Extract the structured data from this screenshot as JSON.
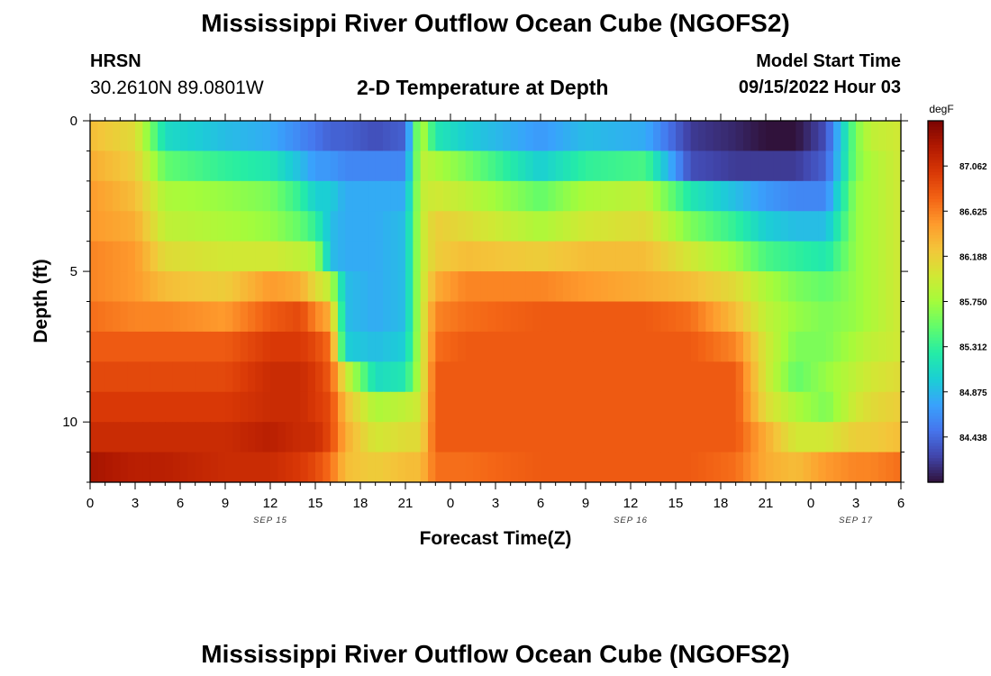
{
  "page": {
    "title_top": "Mississippi River Outflow Ocean Cube (NGOFS2)",
    "title_bottom": "Mississippi River Outflow Ocean Cube (NGOFS2)",
    "station_name": "HRSN",
    "station_coords": "30.2610N  89.0801W",
    "subtitle": "2-D Temperature at Depth",
    "model_start_label": "Model Start Time",
    "model_start_value": "09/15/2022 Hour 03"
  },
  "colors": {
    "colormap": [
      "#30123b",
      "#4145ab",
      "#4675ed",
      "#39a2fc",
      "#1bcfd4",
      "#24eca6",
      "#61fc6c",
      "#a4fc3b",
      "#d1e834",
      "#f3c63a",
      "#fe9b2d",
      "#f36315",
      "#d93806",
      "#b11901",
      "#7a0402"
    ]
  },
  "chart_data": {
    "type": "heatmap",
    "title": "2-D Temperature at Depth",
    "xlabel": "Forecast Time(Z)",
    "ylabel": "Depth (ft)",
    "x_ticks": [
      "0",
      "3",
      "6",
      "9",
      "12",
      "15",
      "18",
      "21",
      "0",
      "3",
      "6",
      "9",
      "12",
      "15",
      "18",
      "21",
      "0",
      "3",
      "6"
    ],
    "x_range_hours": [
      0,
      54
    ],
    "date_labels": [
      {
        "label": "SEP 15",
        "hour": 12
      },
      {
        "label": "SEP 16",
        "hour": 36
      },
      {
        "label": "SEP 17",
        "hour": 51
      }
    ],
    "y_ticks": [
      "0",
      "5",
      "10"
    ],
    "y_tick_values": [
      0,
      5,
      10
    ],
    "y_range_ft": [
      0,
      12
    ],
    "colorbar": {
      "unit": "degF",
      "labels": [
        "87.062",
        "86.625",
        "86.188",
        "85.750",
        "85.312",
        "84.875",
        "84.438"
      ],
      "label_values": [
        87.062,
        86.625,
        86.188,
        85.75,
        85.312,
        84.875,
        84.438
      ],
      "range": [
        84.0,
        87.5
      ]
    },
    "depths_ft": [
      0.5,
      1.5,
      2.5,
      3.5,
      4.5,
      5.5,
      6.5,
      7.5,
      8.5,
      9.5,
      10.5,
      11.5
    ],
    "keyframes_hours": [
      0,
      3,
      5,
      9,
      12,
      14,
      15,
      16,
      17,
      19,
      21,
      22,
      23,
      25,
      30,
      33,
      37,
      40,
      43,
      45,
      47,
      49,
      51,
      52,
      54
    ],
    "temperature_keyframes": [
      [
        86.3,
        86.1,
        85.1,
        84.9,
        84.8,
        84.6,
        84.5,
        84.4,
        84.4,
        84.3,
        84.4,
        85.9,
        85.2,
        85.0,
        84.7,
        84.9,
        84.8,
        84.2,
        84.1,
        84.0,
        84.0,
        84.3,
        85.6,
        85.9,
        86.0
      ],
      [
        86.4,
        86.2,
        85.5,
        85.3,
        85.2,
        84.9,
        84.7,
        84.7,
        84.6,
        84.6,
        84.6,
        85.9,
        85.8,
        85.6,
        85.0,
        85.3,
        85.4,
        84.3,
        84.2,
        84.2,
        84.2,
        84.4,
        85.6,
        85.8,
        86.0
      ],
      [
        86.5,
        86.3,
        85.8,
        85.7,
        85.6,
        85.3,
        85.0,
        85.0,
        84.8,
        84.8,
        84.8,
        85.9,
        86.0,
        85.9,
        85.5,
        85.8,
        85.9,
        85.2,
        84.9,
        84.7,
        84.6,
        84.6,
        85.7,
        85.8,
        86.0
      ],
      [
        86.5,
        86.4,
        85.9,
        85.8,
        85.7,
        85.5,
        85.3,
        84.9,
        84.8,
        84.8,
        84.9,
        85.9,
        86.2,
        86.1,
        85.8,
        86.0,
        86.1,
        85.6,
        85.3,
        85.0,
        84.9,
        84.9,
        85.7,
        85.8,
        86.0
      ],
      [
        86.6,
        86.5,
        86.1,
        86.0,
        86.0,
        85.9,
        85.8,
        84.9,
        84.8,
        84.8,
        84.9,
        85.9,
        86.2,
        86.3,
        86.2,
        86.3,
        86.3,
        86.0,
        85.7,
        85.4,
        85.3,
        85.2,
        85.7,
        85.8,
        86.0
      ],
      [
        86.6,
        86.5,
        86.3,
        86.2,
        86.5,
        86.4,
        86.1,
        85.9,
        84.9,
        84.8,
        84.9,
        85.9,
        86.4,
        86.6,
        86.6,
        86.5,
        86.4,
        86.3,
        86.1,
        85.8,
        85.6,
        85.5,
        85.7,
        85.8,
        86.0
      ],
      [
        86.7,
        86.6,
        86.6,
        86.5,
        86.8,
        86.9,
        86.6,
        86.4,
        84.9,
        84.8,
        84.9,
        85.9,
        86.6,
        86.7,
        86.8,
        86.8,
        86.8,
        86.7,
        86.3,
        85.9,
        85.7,
        85.6,
        85.7,
        85.8,
        86.0
      ],
      [
        86.8,
        86.8,
        86.8,
        86.8,
        87.0,
        87.0,
        86.9,
        86.7,
        85.0,
        84.9,
        85.0,
        85.9,
        86.7,
        86.8,
        86.8,
        86.8,
        86.8,
        86.8,
        86.6,
        86.0,
        85.6,
        85.6,
        85.8,
        85.9,
        86.0
      ],
      [
        86.9,
        86.9,
        86.9,
        86.9,
        87.1,
        87.1,
        87.0,
        86.8,
        86.0,
        85.1,
        85.2,
        85.9,
        86.8,
        86.8,
        86.8,
        86.8,
        86.8,
        86.8,
        86.8,
        86.0,
        85.5,
        85.7,
        85.9,
        86.0,
        86.1
      ],
      [
        87.0,
        87.0,
        87.0,
        87.0,
        87.1,
        87.1,
        87.0,
        86.9,
        86.3,
        85.8,
        85.9,
        86.0,
        86.8,
        86.8,
        86.8,
        86.8,
        86.8,
        86.8,
        86.8,
        86.1,
        85.8,
        85.6,
        86.0,
        86.1,
        86.2
      ],
      [
        87.1,
        87.1,
        87.1,
        87.1,
        87.2,
        87.1,
        87.1,
        86.9,
        86.4,
        86.0,
        86.1,
        86.1,
        86.8,
        86.8,
        86.8,
        86.8,
        86.8,
        86.8,
        86.8,
        86.4,
        86.0,
        86.0,
        86.2,
        86.2,
        86.3
      ],
      [
        87.3,
        87.2,
        87.2,
        87.1,
        87.1,
        87.0,
        86.9,
        86.7,
        86.3,
        86.2,
        86.3,
        86.3,
        86.7,
        86.7,
        86.8,
        86.8,
        86.8,
        86.8,
        86.7,
        86.4,
        86.3,
        86.5,
        86.6,
        86.6,
        86.7
      ]
    ]
  }
}
